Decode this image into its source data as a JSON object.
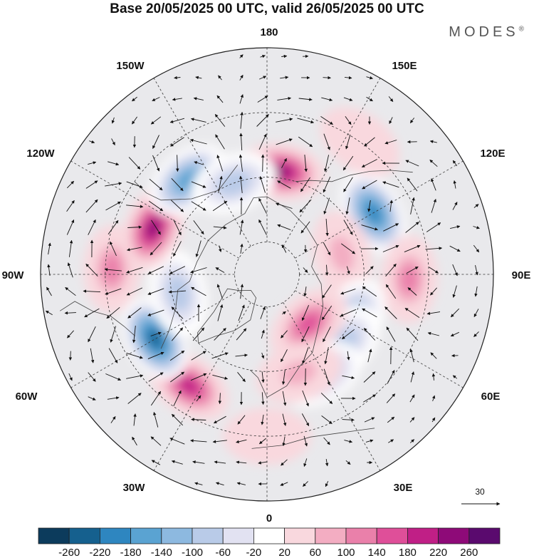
{
  "title": "Base 20/05/2025 00 UTC, valid 26/05/2025 00 UTC",
  "brand": {
    "name": "MODES",
    "mark": "®"
  },
  "longitude_labels": {
    "top": "180",
    "bottom": "0",
    "left": "90W",
    "right": "90E",
    "upper_left_1": "150W",
    "upper_left_2": "120W",
    "upper_right_1": "150E",
    "upper_right_2": "120E",
    "lower_left_1": "60W",
    "lower_left_2": "30W",
    "lower_right_1": "60E",
    "lower_right_2": "30E"
  },
  "vector_reference": {
    "value": "30"
  },
  "colorbar": {
    "colors": [
      "#0c3b5c",
      "#15608e",
      "#2e86c0",
      "#5aa3d2",
      "#8db9e0",
      "#b9cbe8",
      "#e2e2f2",
      "#ffffff",
      "#f9d8de",
      "#f3adc2",
      "#ea80aa",
      "#df4f99",
      "#c01f86",
      "#8e0a78",
      "#5a0a6e"
    ],
    "tick_labels": [
      "-260",
      "-220",
      "-180",
      "-140",
      "-100",
      "-60",
      "-20",
      "20",
      "60",
      "100",
      "140",
      "180",
      "220",
      "260"
    ]
  },
  "anomalies": [
    {
      "lon": 172,
      "lat": 58,
      "value": 240
    },
    {
      "lon": 120,
      "lat": 52,
      "value": -200
    },
    {
      "lon": 88,
      "lat": 46,
      "value": 130
    },
    {
      "lon": 105,
      "lat": 66,
      "value": 70
    },
    {
      "lon": 62,
      "lat": 60,
      "value": -110
    },
    {
      "lon": 48,
      "lat": 58,
      "value": -90
    },
    {
      "lon": 40,
      "lat": 70,
      "value": 140
    },
    {
      "lon": 28,
      "lat": 55,
      "value": -100
    },
    {
      "lon": 18,
      "lat": 58,
      "value": 60
    },
    {
      "lon": 0,
      "lat": 40,
      "value": 50
    },
    {
      "lon": -35,
      "lat": 48,
      "value": 200
    },
    {
      "lon": -60,
      "lat": 50,
      "value": -240
    },
    {
      "lon": -78,
      "lat": 62,
      "value": -80
    },
    {
      "lon": -92,
      "lat": 42,
      "value": 110
    },
    {
      "lon": -112,
      "lat": 52,
      "value": 230
    },
    {
      "lon": -140,
      "lat": 52,
      "value": -170
    },
    {
      "lon": -160,
      "lat": 60,
      "value": -90
    },
    {
      "lon": 145,
      "lat": 40,
      "value": 40
    }
  ]
}
